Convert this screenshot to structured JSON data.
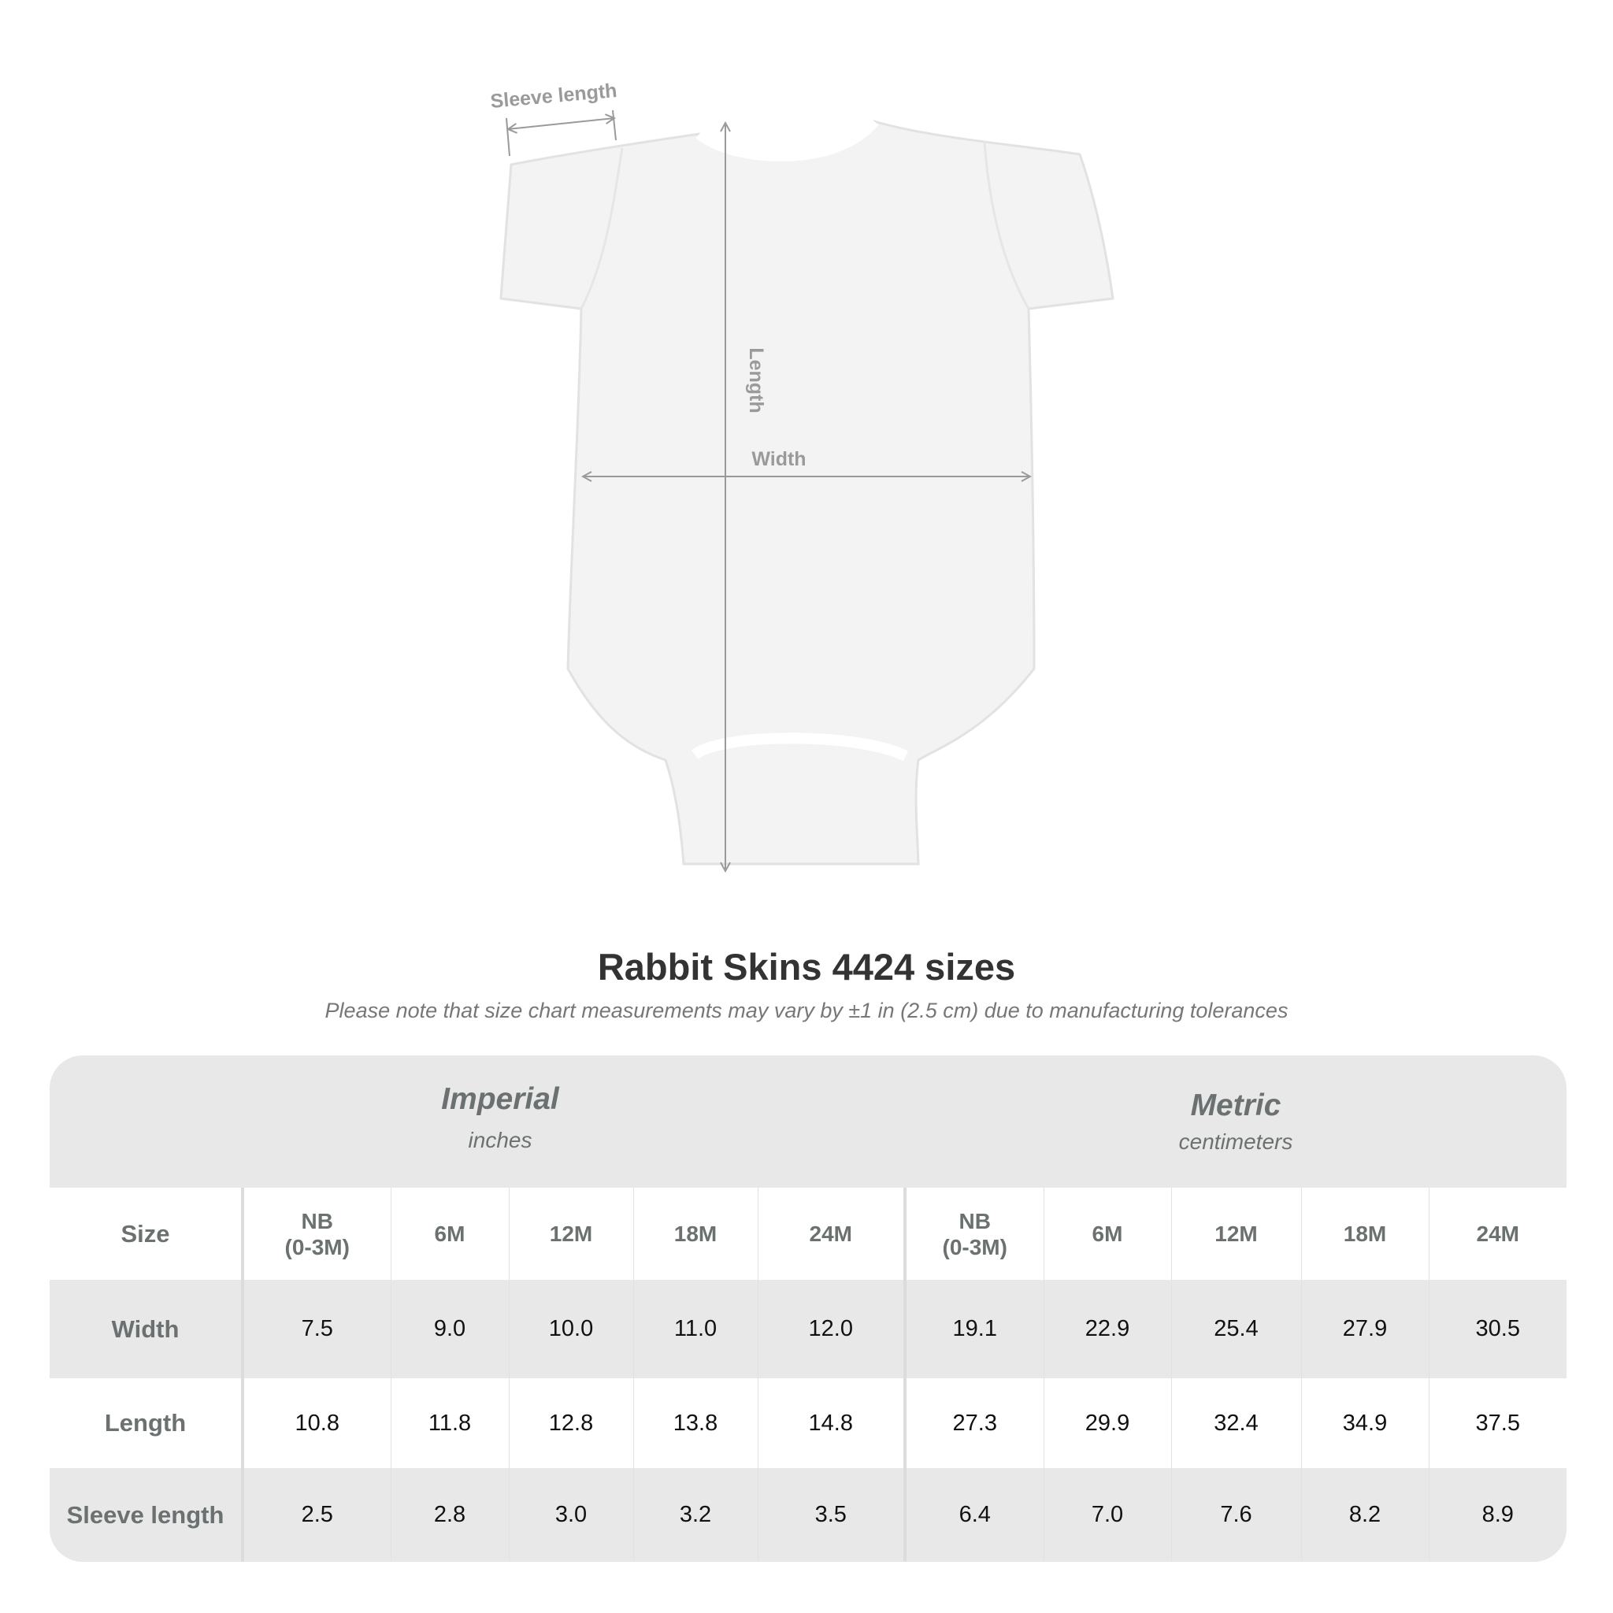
{
  "diagram": {
    "labels": {
      "sleeve": "Sleeve length",
      "length": "Length",
      "width": "Width"
    },
    "colors": {
      "garment": "#f3f3f3",
      "arrow": "#9a9a9a"
    }
  },
  "title": "Rabbit Skins 4424 sizes",
  "subtitle": "Please note that size chart measurements may vary by ±1 in (2.5 cm) due to manufacturing tolerances",
  "table": {
    "imperial": {
      "name": "Imperial",
      "unit": "inches"
    },
    "metric": {
      "name": "Metric",
      "unit": "centimeters"
    },
    "size_label": "Size",
    "sizes": [
      "NB\n(0-3M)",
      "6M",
      "12M",
      "18M",
      "24M"
    ],
    "rows": [
      {
        "label": "Width",
        "imperial": [
          "7.5",
          "9.0",
          "10.0",
          "11.0",
          "12.0"
        ],
        "metric": [
          "19.1",
          "22.9",
          "25.4",
          "27.9",
          "30.5"
        ]
      },
      {
        "label": "Length",
        "imperial": [
          "10.8",
          "11.8",
          "12.8",
          "13.8",
          "14.8"
        ],
        "metric": [
          "27.3",
          "29.9",
          "32.4",
          "34.9",
          "37.5"
        ]
      },
      {
        "label": "Sleeve length",
        "imperial": [
          "2.5",
          "2.8",
          "3.0",
          "3.2",
          "3.5"
        ],
        "metric": [
          "6.4",
          "7.0",
          "7.6",
          "8.2",
          "8.9"
        ]
      }
    ],
    "colors": {
      "header_bg": "#e8e8e8",
      "label_text": "#6b7070"
    }
  }
}
